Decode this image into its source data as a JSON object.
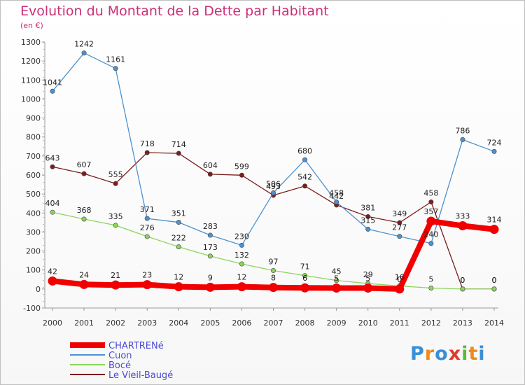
{
  "header": {
    "title": "Evolution du Montant de la Dette par Habitant",
    "unit": "(en €)"
  },
  "logo": {
    "letters": [
      "P",
      "r",
      "o",
      "x",
      "i",
      "t",
      "i"
    ],
    "colors": [
      "#3a8fd6",
      "#f08a1c",
      "#3a8fd6",
      "#e03a2a",
      "#5fb83a",
      "#f08a1c",
      "#3a8fd6"
    ]
  },
  "chart_data": {
    "type": "line",
    "title": "Evolution du Montant de la Dette par Habitant",
    "ylabel": "(en €)",
    "xlabel": "",
    "x": [
      "2000",
      "2001",
      "2002",
      "2003",
      "2004",
      "2005",
      "2006",
      "2007",
      "2008",
      "2009",
      "2010",
      "2011",
      "2012",
      "2013",
      "2014"
    ],
    "ylim": [
      -100,
      1300
    ],
    "yticks": [
      "-100",
      "0",
      "100",
      "200",
      "300",
      "400",
      "500",
      "600",
      "700",
      "800",
      "900",
      "1000",
      "1100",
      "1200",
      "1300"
    ],
    "grid": false,
    "legend_position": "bottom-left",
    "series": [
      {
        "name": "CHARTRENé",
        "color": "#f00000",
        "values": [
          42,
          24,
          21,
          23,
          12,
          9,
          12,
          8,
          6,
          5,
          5,
          0,
          357,
          333,
          314
        ],
        "labels": [
          "42",
          "24",
          "21",
          "23",
          "12",
          "9",
          "12",
          "8",
          "6",
          "5",
          "5",
          "0",
          "357",
          "333",
          "314"
        ]
      },
      {
        "name": "Cuon",
        "color": "#4d92cf",
        "values": [
          1041,
          1242,
          1161,
          371,
          351,
          283,
          230,
          506,
          680,
          458,
          315,
          277,
          240,
          786,
          724
        ],
        "labels": [
          "1041",
          "1242",
          "1161",
          "371",
          "351",
          "283",
          "230",
          "506",
          "680",
          "458",
          "315",
          "277",
          "240",
          "786",
          "724"
        ]
      },
      {
        "name": "Bocé",
        "color": "#8cd45c",
        "values": [
          404,
          368,
          335,
          276,
          222,
          173,
          132,
          97,
          71,
          45,
          29,
          16,
          5,
          0,
          0
        ],
        "labels": [
          "404",
          "368",
          "335",
          "276",
          "222",
          "173",
          "132",
          "97",
          "71",
          "45",
          "29",
          "16",
          "5",
          "0",
          "0"
        ]
      },
      {
        "name": "Le Vieil-Baugé",
        "color": "#7a1e1e",
        "values": [
          643,
          607,
          555,
          718,
          714,
          604,
          599,
          493,
          542,
          442,
          381,
          349,
          458,
          0,
          0
        ],
        "labels": [
          "643",
          "607",
          "555",
          "718",
          "714",
          "604",
          "599",
          "493",
          "542",
          "442",
          "381",
          "349",
          "458",
          "0",
          "0"
        ]
      }
    ]
  }
}
